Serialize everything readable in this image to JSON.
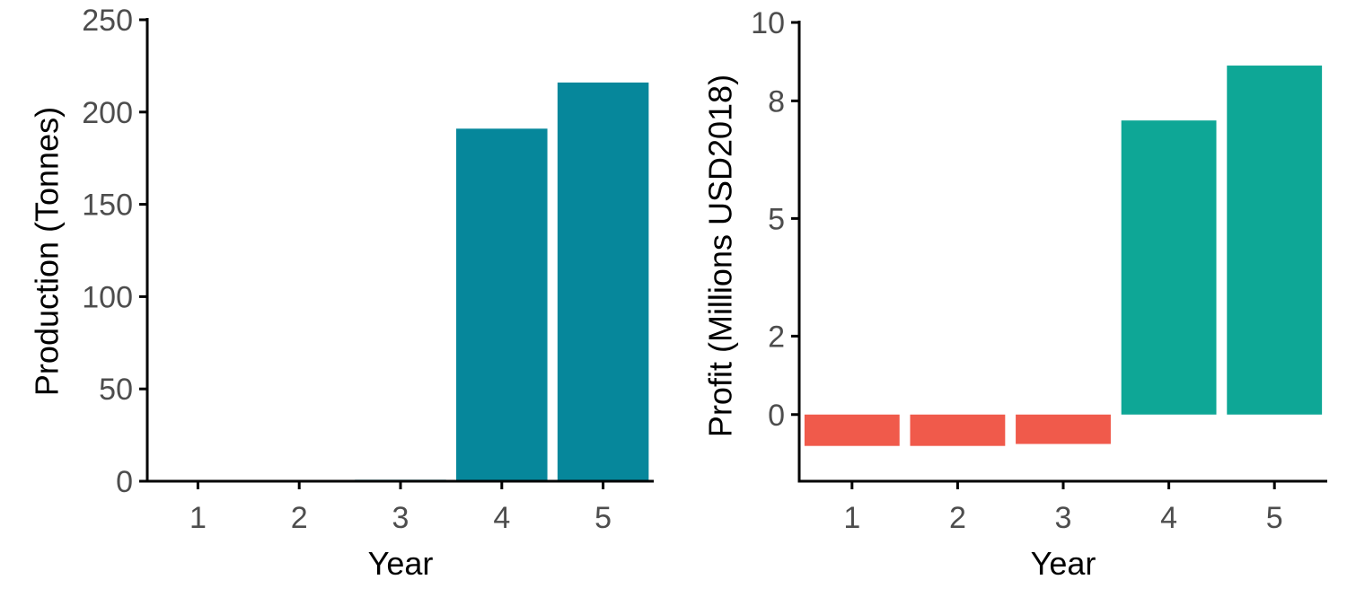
{
  "chart_data": [
    {
      "type": "bar",
      "xlabel": "Year",
      "ylabel": "Production (Tonnes)",
      "categories": [
        "1",
        "2",
        "3",
        "4",
        "5"
      ],
      "values": [
        0,
        0,
        0.8,
        191,
        216
      ],
      "ylim": [
        0,
        250
      ],
      "yticks": [
        0,
        50,
        100,
        150,
        200,
        250
      ],
      "ytick_labels": [
        "0",
        "50",
        "100",
        "150",
        "200",
        "250"
      ],
      "bar_color": "#06879b",
      "grid": false
    },
    {
      "type": "bar",
      "xlabel": "Year",
      "ylabel": "Profit (Millions USD2018)",
      "categories": [
        "1",
        "2",
        "3",
        "4",
        "5"
      ],
      "values": [
        -0.8,
        -0.8,
        -0.75,
        7.5,
        8.9
      ],
      "ylim": [
        -1.7,
        10
      ],
      "yticks": [
        0,
        2,
        5,
        8,
        10
      ],
      "ytick_labels": [
        "0",
        "2",
        "5",
        "8",
        "10"
      ],
      "positive_color": "#0ea796",
      "negative_color": "#f05a4b",
      "grid": false
    }
  ]
}
